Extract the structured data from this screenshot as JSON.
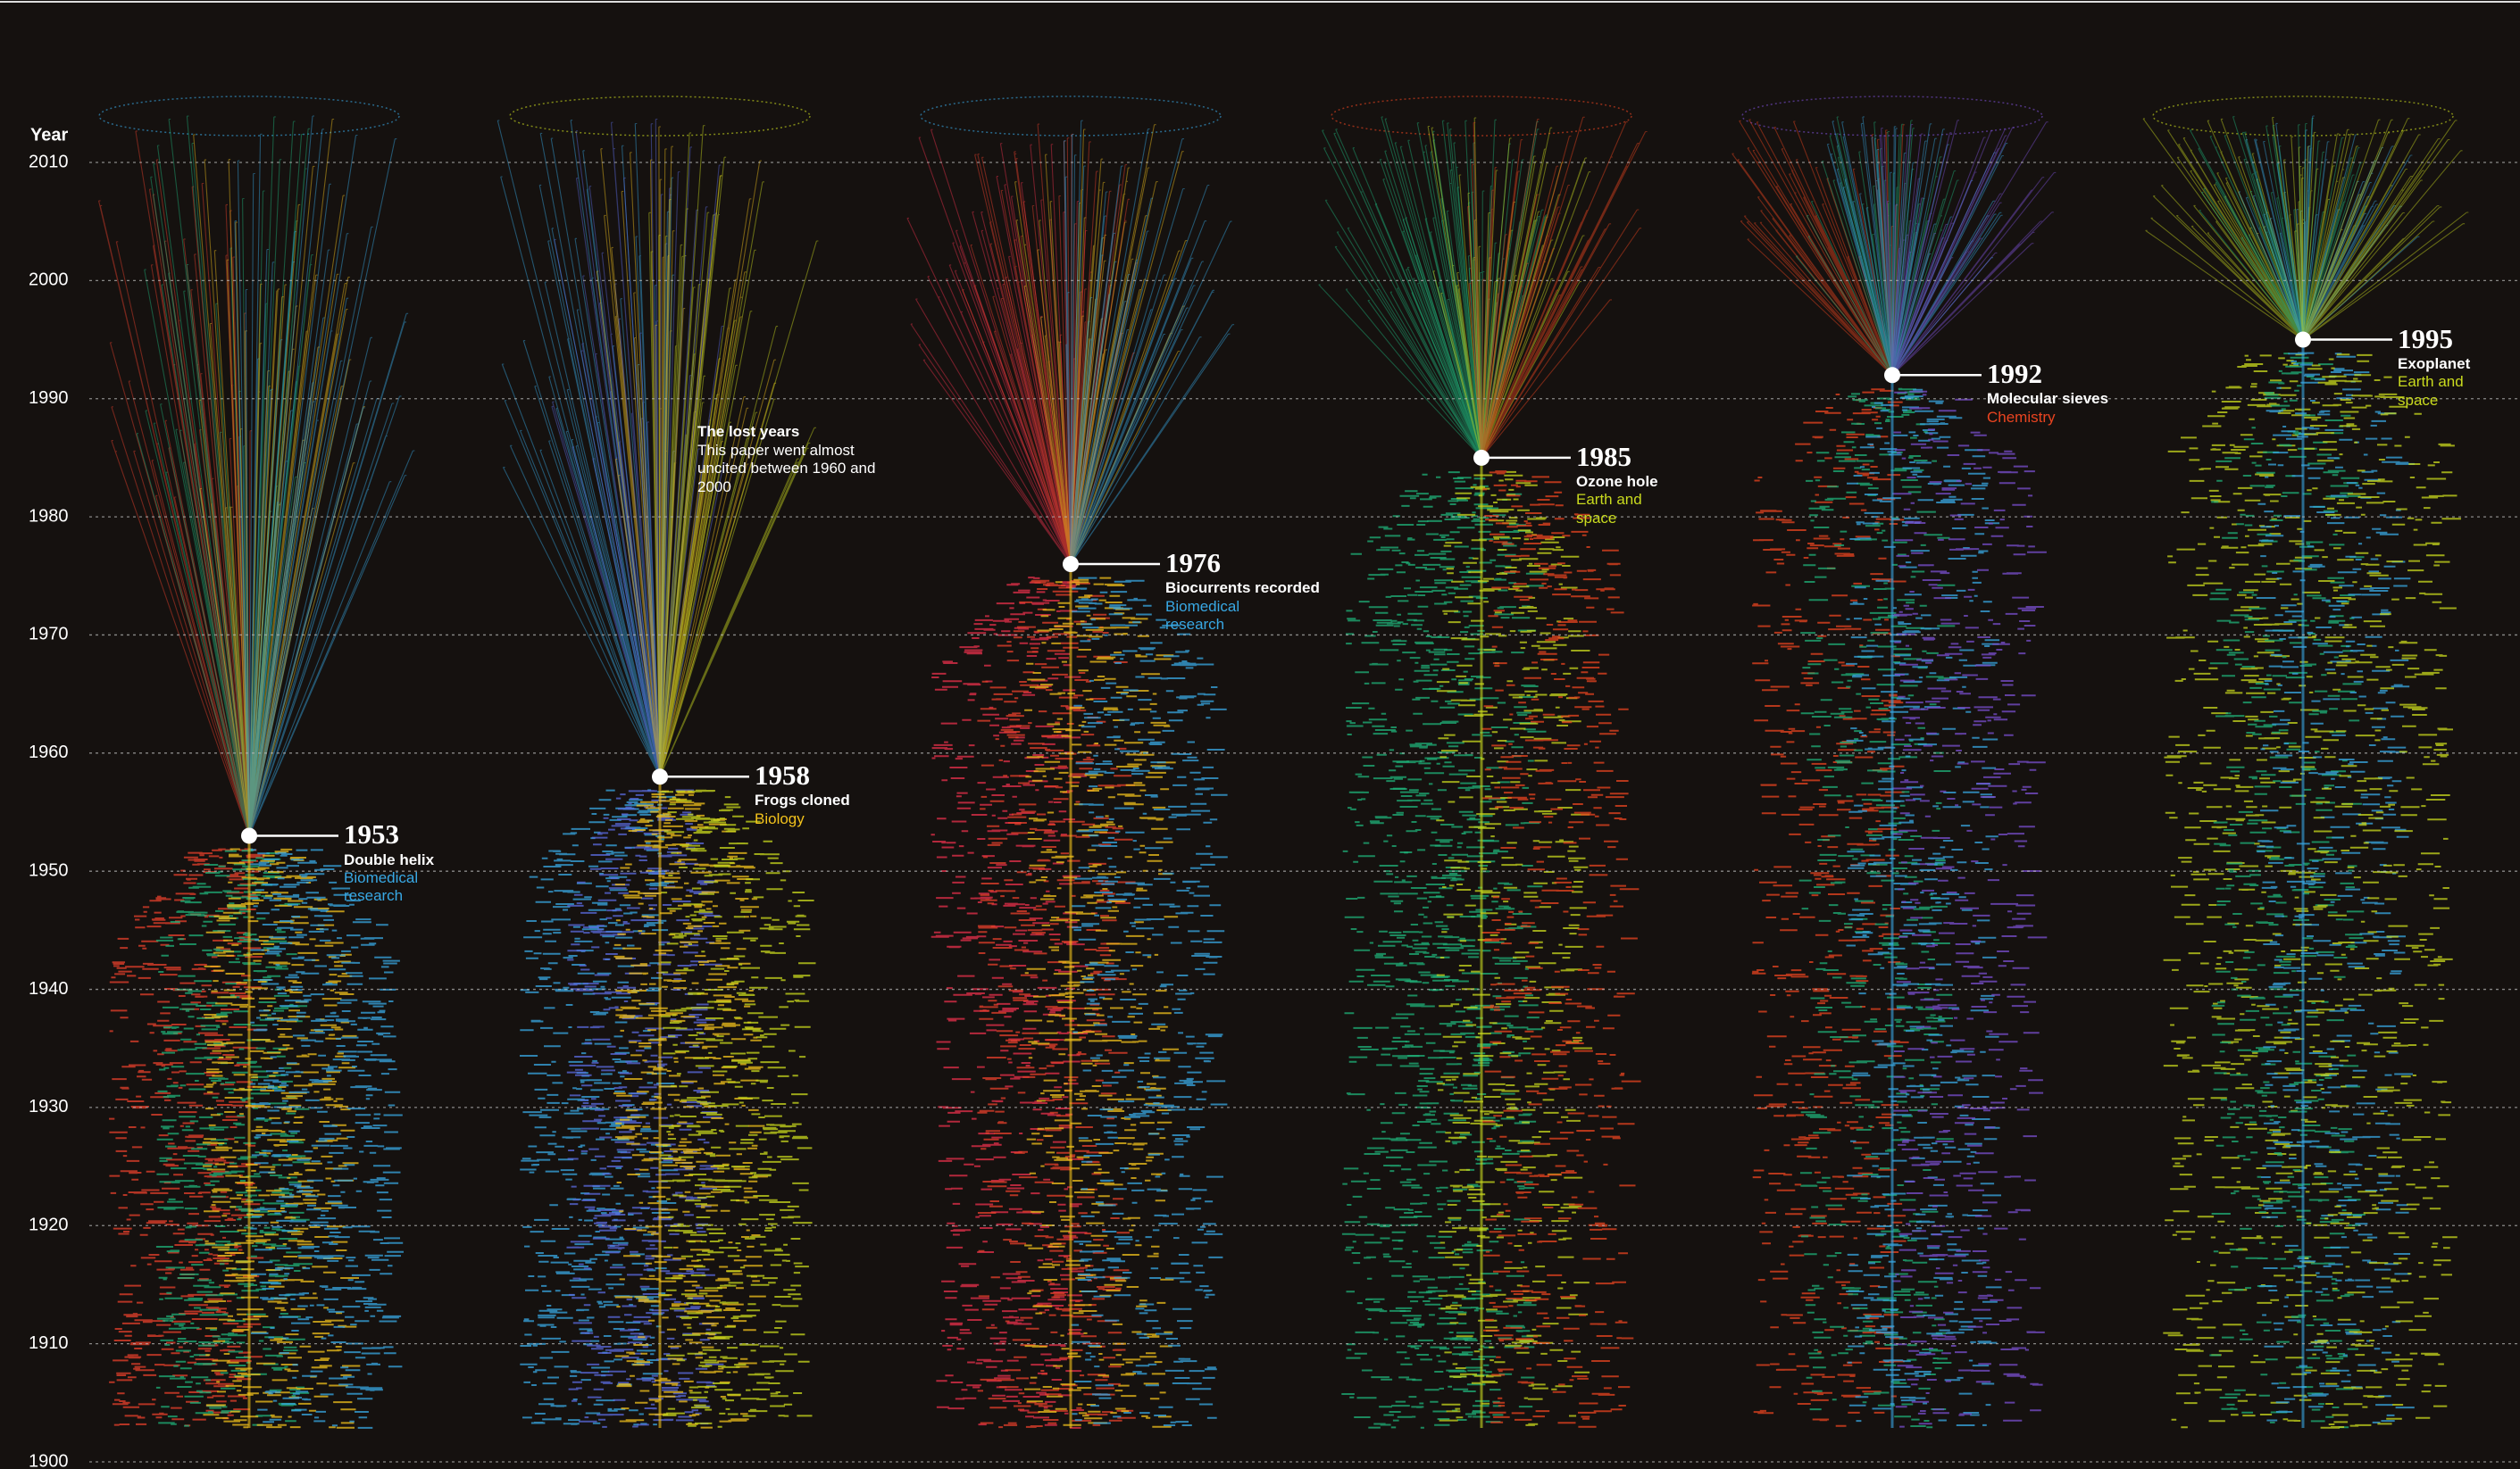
{
  "chart_data": {
    "type": "timeline",
    "y_label": "Year",
    "ylim": [
      1900,
      2010
    ],
    "yticks": [
      1900,
      1910,
      1920,
      1930,
      1940,
      1950,
      1960,
      1970,
      1980,
      1990,
      2000,
      2010
    ],
    "grid": true,
    "annotation": {
      "title": "The lost years",
      "text": "This paper went almost uncited between 1960 and 2000"
    },
    "papers": [
      {
        "year": 1953,
        "title": "Double helix",
        "field": "Biomedical research",
        "color": "#38a8e4"
      },
      {
        "year": 1958,
        "title": "Frogs cloned",
        "field": "Biology",
        "color": "#f2c21c"
      },
      {
        "year": 1976,
        "title": "Biocurrents recorded",
        "field": "Biomedical research",
        "color": "#38a8e4"
      },
      {
        "year": 1985,
        "title": "Ozone hole",
        "field": "Earth and space",
        "color": "#c9da1e"
      },
      {
        "year": 1992,
        "title": "Molecular sieves",
        "field": "Chemistry",
        "color": "#ea4420"
      },
      {
        "year": 1995,
        "title": "Exoplanet",
        "field": "Earth and space",
        "color": "#c9da1e"
      }
    ]
  }
}
